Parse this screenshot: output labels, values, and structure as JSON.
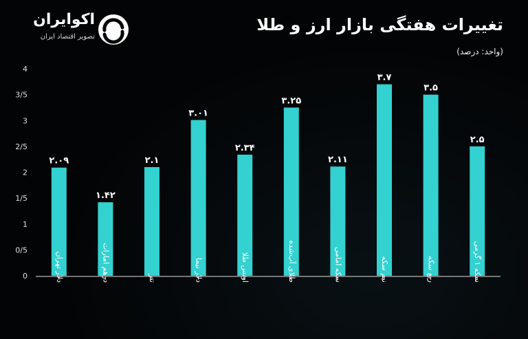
{
  "header": {
    "title": "تغییرات هفتگی بازار ارز و طلا",
    "subtitle": "(واحد: درصد)"
  },
  "brand": {
    "name": "اکوایران",
    "tagline": "تصویر اقتصاد ایران",
    "logo_icon": "ecoiran-logo-icon"
  },
  "colors": {
    "bar": "#33d1cf",
    "background": "#030405",
    "text": "#ffffff",
    "axis": "#e0e0e0"
  },
  "chart_data": {
    "type": "bar",
    "title": "تغییرات هفتگی بازار ارز و طلا",
    "ylabel": "",
    "xlabel": "",
    "ylim": [
      0,
      4
    ],
    "yticks": [
      0,
      0.5,
      1,
      1.5,
      2,
      2.5,
      3,
      3.5,
      4
    ],
    "ytick_labels": [
      "0",
      "0/5",
      "1",
      "1/5",
      "2",
      "2/5",
      "3",
      "3/5",
      "4"
    ],
    "grid": false,
    "categories": [
      "دلار تهران",
      "درهم امارات",
      "تتر",
      "دلار نیما",
      "اونس طلا",
      "طلای آب‌شده",
      "سکه امامی",
      "نیم سکه",
      "ربع سکه",
      "سکه ۱ گرمی"
    ],
    "values": [
      2.09,
      1.42,
      2.1,
      3.01,
      2.34,
      3.25,
      2.11,
      3.7,
      3.5,
      2.5
    ],
    "value_labels": [
      "۲.۰۹",
      "۱.۴۲",
      "۲.۱",
      "۳.۰۱",
      "۲.۳۴",
      "۳.۲۵",
      "۲.۱۱",
      "۳.۷",
      "۳.۵",
      "۲.۵"
    ]
  }
}
